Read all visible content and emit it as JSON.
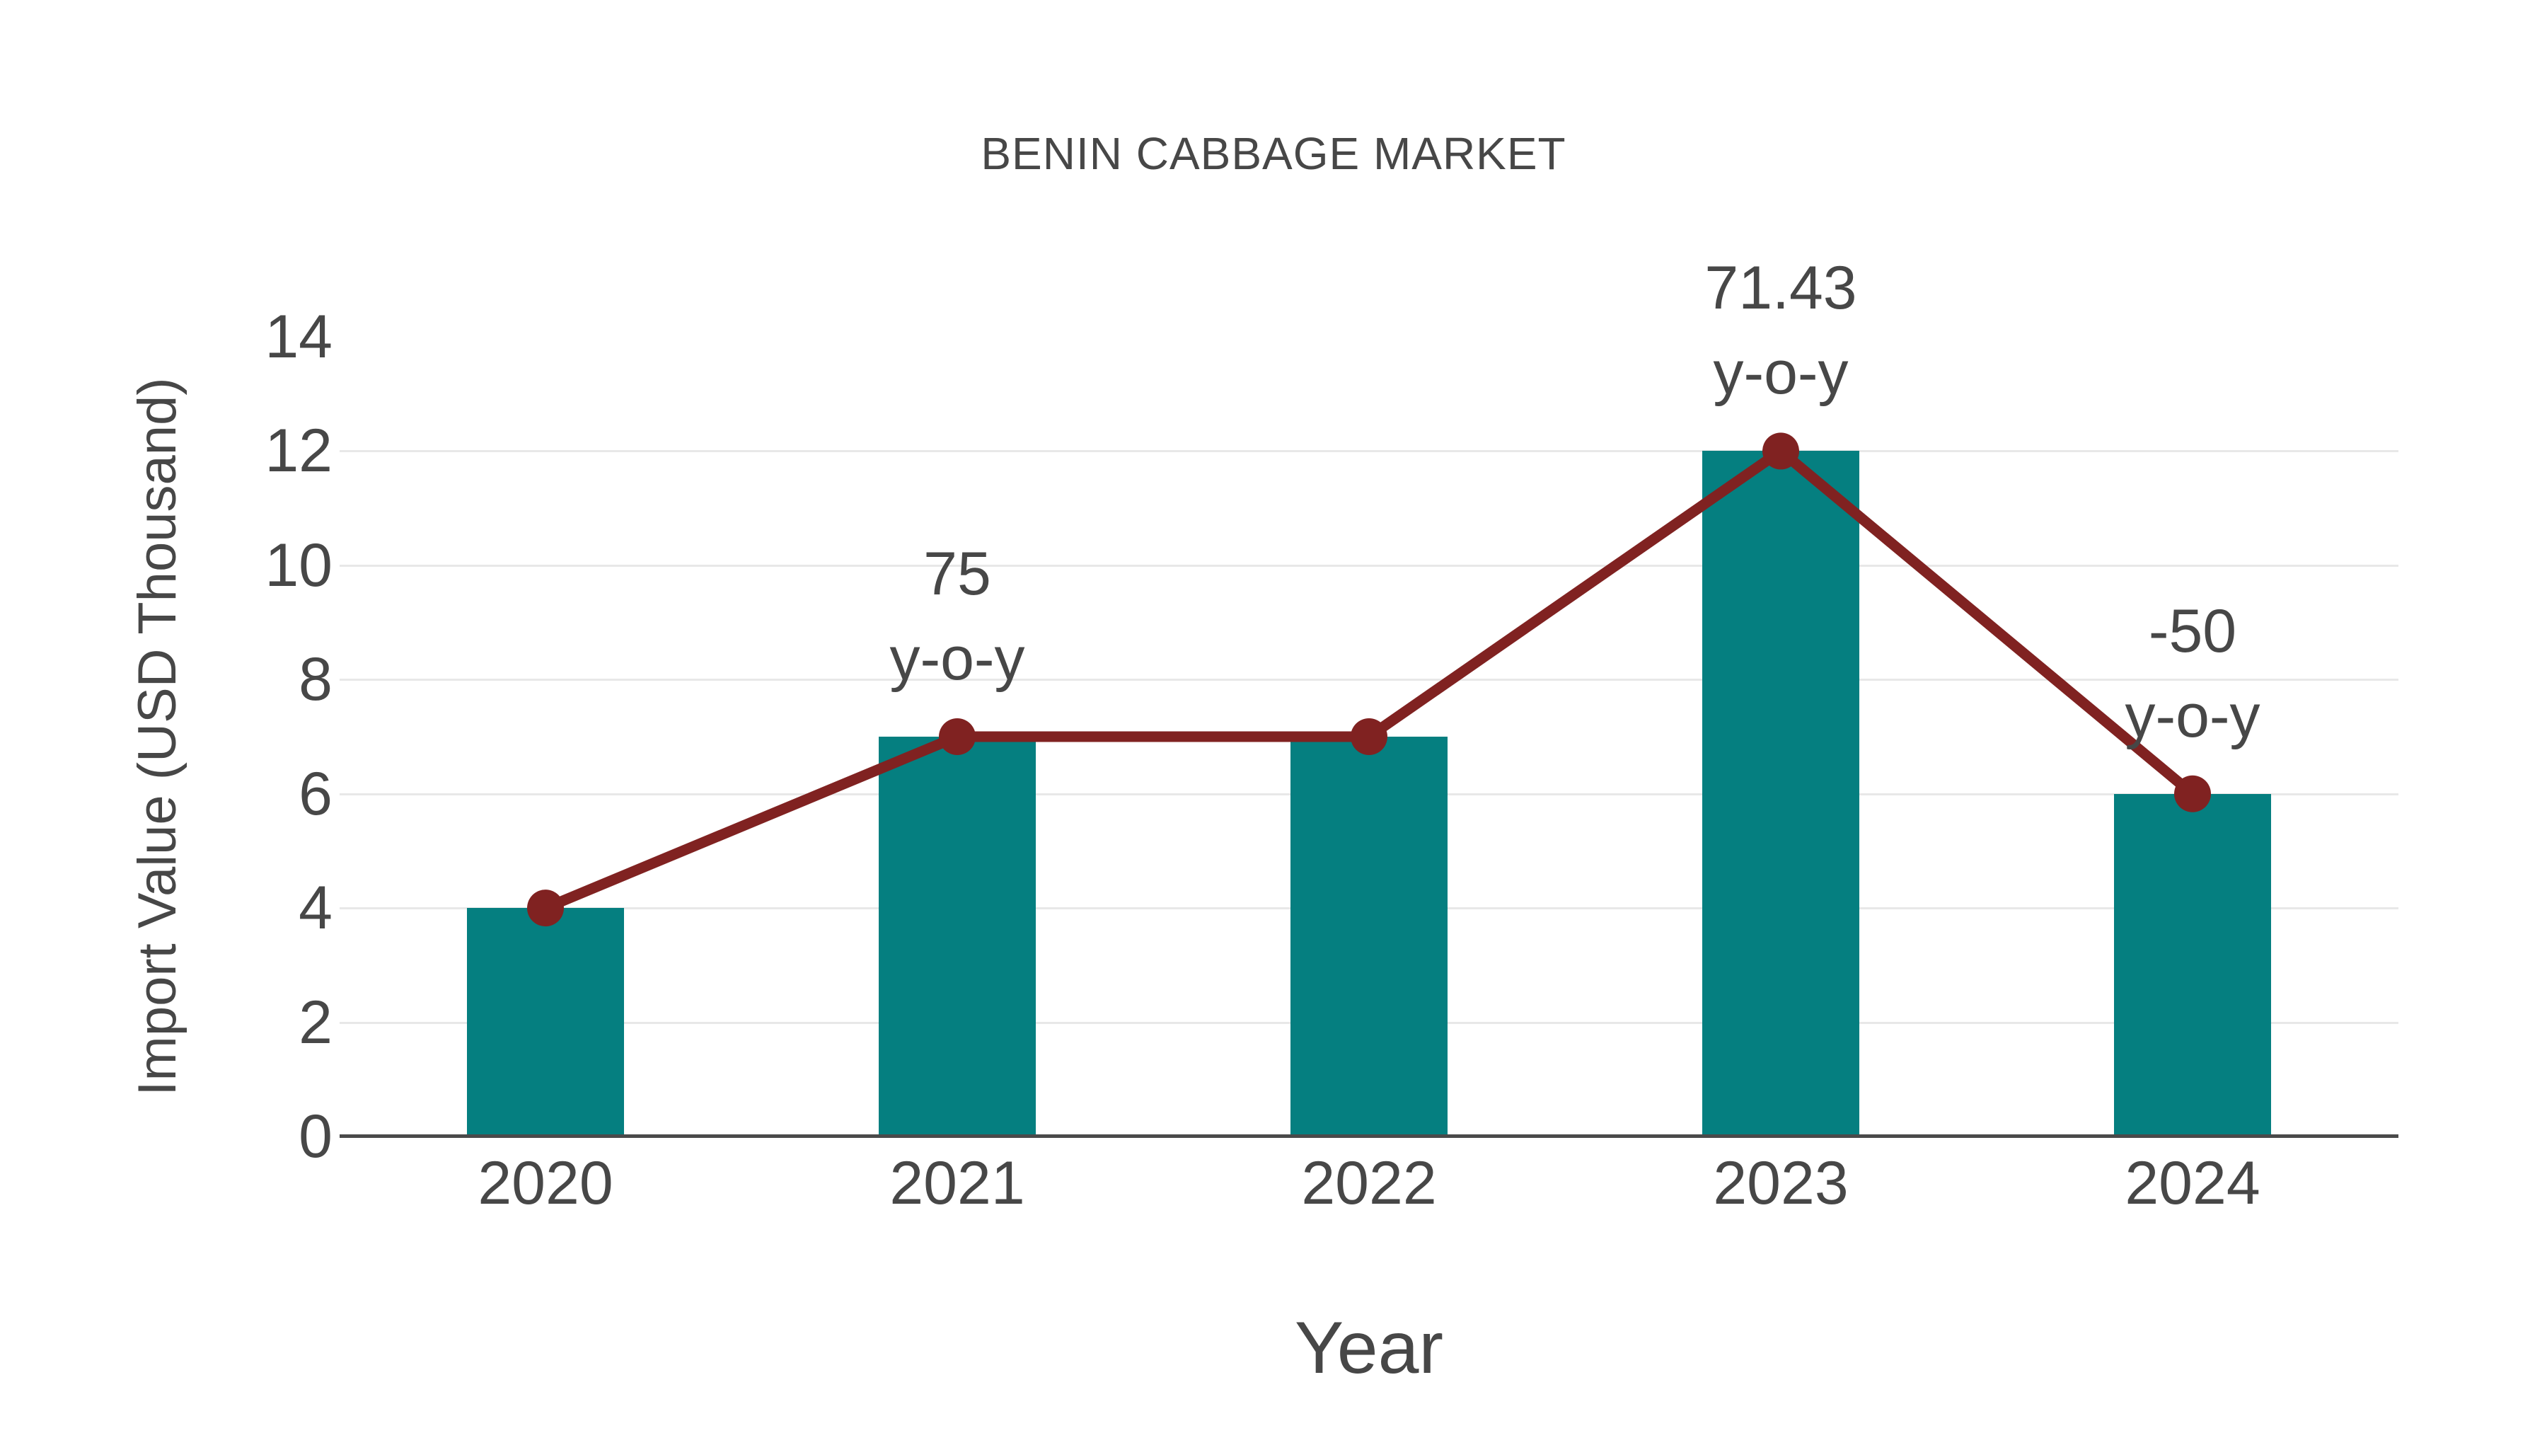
{
  "chart_data": {
    "type": "bar",
    "title": "BENIN CABBAGE MARKET",
    "xlabel": "Year",
    "ylabel": "Import Value (USD Thousand)",
    "categories": [
      "2020",
      "2021",
      "2022",
      "2023",
      "2024"
    ],
    "series": [
      {
        "name": "Import Value bars",
        "type": "bar",
        "values": [
          4,
          7,
          7,
          12,
          6
        ]
      },
      {
        "name": "Import Value trend line",
        "type": "line",
        "values": [
          4,
          7,
          7,
          12,
          6
        ]
      }
    ],
    "annotations": [
      {
        "category_index": 1,
        "text_lines": [
          "75",
          "y-o-y"
        ]
      },
      {
        "category_index": 3,
        "text_lines": [
          "71.43",
          "y-o-y"
        ]
      },
      {
        "category_index": 4,
        "text_lines": [
          "-50",
          "y-o-y"
        ]
      }
    ],
    "ylim": [
      0,
      14
    ],
    "yticks": [
      0,
      2,
      4,
      6,
      8,
      10,
      12,
      14
    ],
    "grid": true,
    "gridline_ticks": [
      2,
      4,
      6,
      8,
      10,
      12
    ],
    "legend_position": "none",
    "colors": {
      "bar": "#057F80",
      "line": "#802221",
      "marker": "#802221",
      "text": "#474747",
      "grid": "#E8E8E8",
      "axis": "#4A4A4A",
      "background": "#FFFFFF"
    }
  }
}
